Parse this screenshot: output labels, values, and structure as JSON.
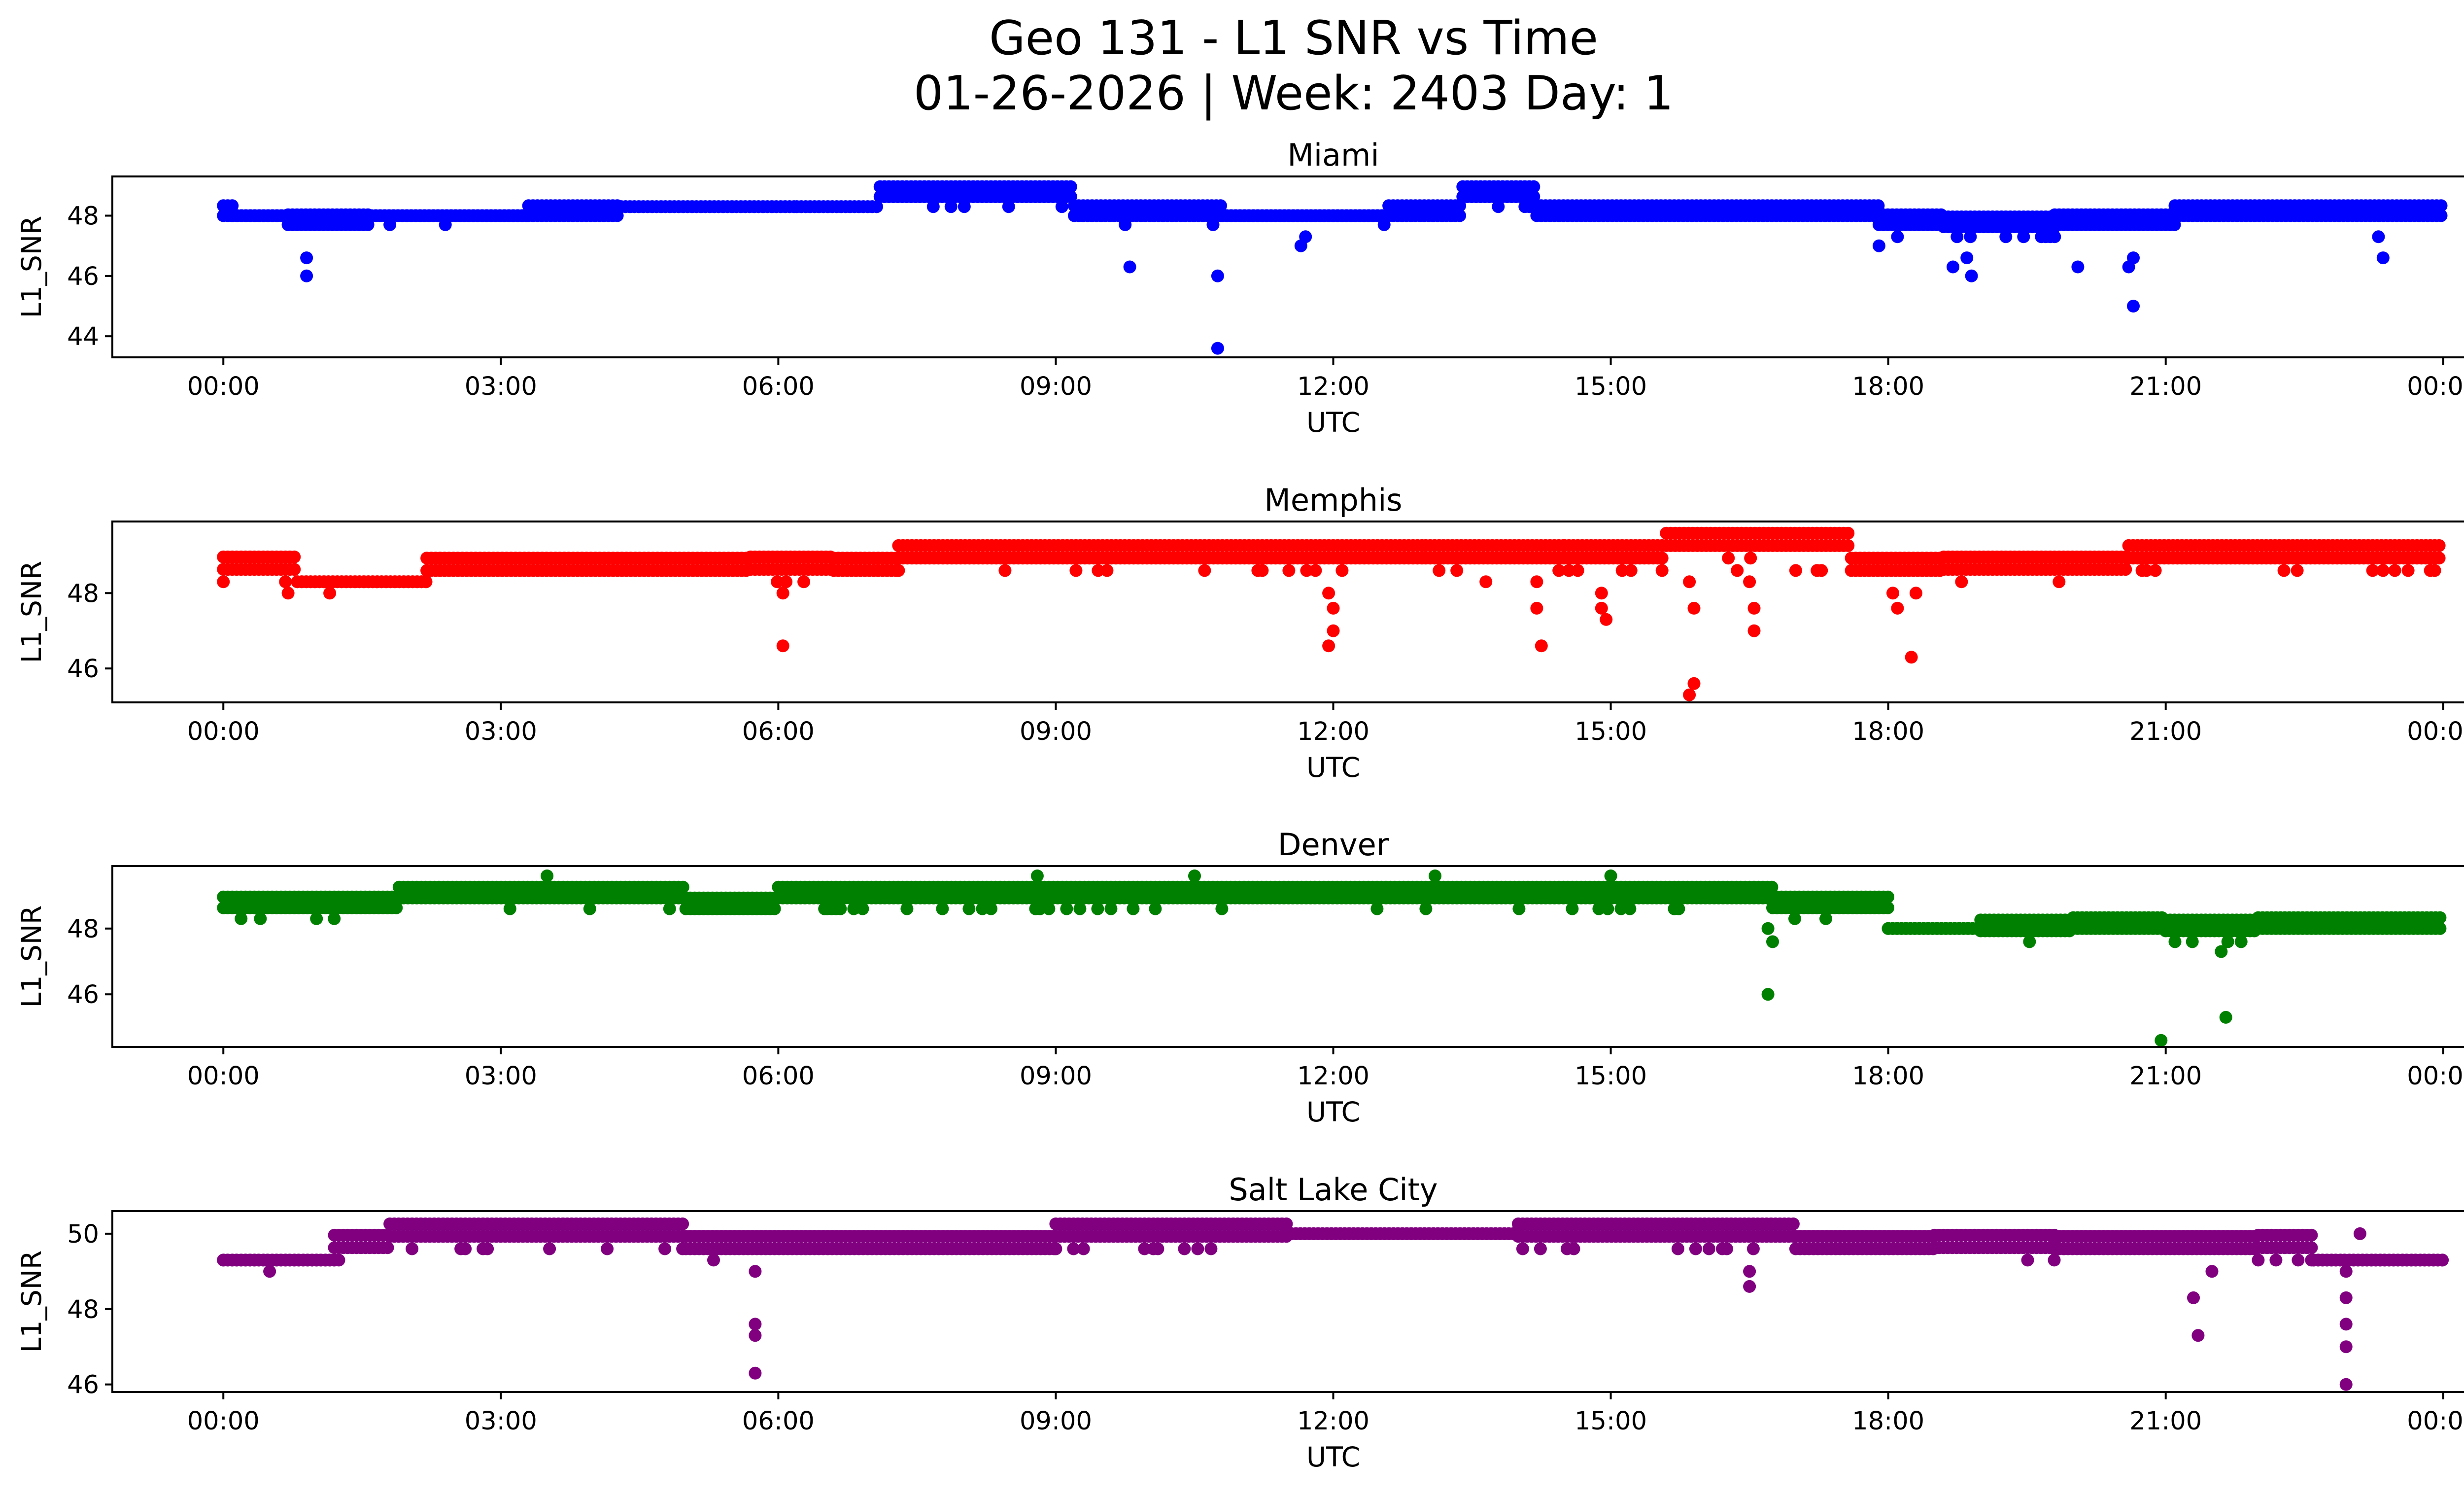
{
  "title": "Geo 131 - L1 SNR vs Time",
  "subtitle": "01-26-2026 | Week: 2403 Day: 1",
  "chart_data": [
    {
      "type": "scatter",
      "title": "Miami",
      "color": "#0000ff",
      "xlabel": "UTC",
      "ylabel": "L1_SNR",
      "xticks": [
        "00:00",
        "03:00",
        "06:00",
        "09:00",
        "12:00",
        "15:00",
        "18:00",
        "21:00",
        "00:00"
      ],
      "yticks": [
        44,
        46,
        48
      ],
      "xlim": [
        -1.2,
        25.2
      ],
      "ylim": [
        43.3,
        49.3
      ],
      "bands": [
        [
          0,
          0.1,
          48.0,
          48.6
        ],
        [
          0.1,
          0.7,
          48.0,
          48.3
        ],
        [
          0.7,
          1.6,
          47.7,
          48.3
        ],
        [
          1.6,
          3.3,
          48.0,
          48.3
        ],
        [
          3.3,
          4.3,
          48.0,
          48.6
        ],
        [
          4.3,
          6.2,
          48.3,
          48.6
        ],
        [
          6.2,
          7.1,
          48.3,
          48.6
        ],
        [
          7.1,
          9.2,
          48.3,
          49.0
        ],
        [
          9.2,
          10.8,
          48.0,
          48.6
        ],
        [
          10.8,
          12.6,
          48.0,
          48.3
        ],
        [
          12.6,
          13.4,
          48.0,
          48.6
        ],
        [
          13.4,
          14.2,
          48.3,
          49.0
        ],
        [
          14.2,
          17.9,
          48.0,
          48.6
        ],
        [
          17.9,
          18.6,
          47.7,
          48.3
        ],
        [
          18.6,
          19.8,
          47.3,
          48.0
        ],
        [
          19.8,
          21.1,
          47.7,
          48.3
        ],
        [
          21.1,
          24,
          48.0,
          48.6
        ]
      ],
      "outliers": [
        [
          0.9,
          46.6
        ],
        [
          0.9,
          46.0
        ],
        [
          1.8,
          47.7
        ],
        [
          2.4,
          47.7
        ],
        [
          9.75,
          47.7
        ],
        [
          9.8,
          46.3
        ],
        [
          10.75,
          46.0
        ],
        [
          10.75,
          43.6
        ],
        [
          10.7,
          47.7
        ],
        [
          11.65,
          47.0
        ],
        [
          11.7,
          47.3
        ],
        [
          12.55,
          47.7
        ],
        [
          17.9,
          47.0
        ],
        [
          18.1,
          47.3
        ],
        [
          18.7,
          46.3
        ],
        [
          18.9,
          46.0
        ],
        [
          18.85,
          46.6
        ],
        [
          20.05,
          46.3
        ],
        [
          20.65,
          45.0
        ],
        [
          20.65,
          46.6
        ],
        [
          20.6,
          46.3
        ],
        [
          23.35,
          46.6
        ],
        [
          23.3,
          47.3
        ]
      ]
    },
    {
      "type": "scatter",
      "title": "Memphis",
      "color": "#ff0000",
      "xlabel": "UTC",
      "ylabel": "L1_SNR",
      "xticks": [
        "00:00",
        "03:00",
        "06:00",
        "09:00",
        "12:00",
        "15:00",
        "18:00",
        "21:00",
        "00:00"
      ],
      "yticks": [
        46,
        48
      ],
      "xlim": [
        -1.2,
        25.2
      ],
      "ylim": [
        45.1,
        49.9
      ],
      "bands": [
        [
          0,
          0.8,
          48.3,
          49.0
        ],
        [
          0.8,
          2.2,
          48.3,
          48.6
        ],
        [
          2.2,
          5.7,
          48.6,
          49.0
        ],
        [
          5.7,
          6.6,
          48.3,
          49.0
        ],
        [
          6.6,
          7.3,
          48.6,
          49.0
        ],
        [
          7.3,
          13.0,
          48.6,
          49.3
        ],
        [
          13.0,
          14.5,
          48.6,
          49.3
        ],
        [
          14.5,
          15.6,
          48.6,
          49.3
        ],
        [
          15.6,
          17.6,
          48.6,
          49.6
        ],
        [
          17.6,
          18.6,
          48.6,
          49.0
        ],
        [
          18.6,
          20.6,
          48.3,
          49.0
        ],
        [
          20.6,
          24,
          48.6,
          49.3
        ]
      ],
      "outliers": [
        [
          0.7,
          48.0
        ],
        [
          1.15,
          48.0
        ],
        [
          6.05,
          48.0
        ],
        [
          6.05,
          46.6
        ],
        [
          11.95,
          48.0
        ],
        [
          12.0,
          47.6
        ],
        [
          12.0,
          47.0
        ],
        [
          11.95,
          46.6
        ],
        [
          13.65,
          48.3
        ],
        [
          14.2,
          48.3
        ],
        [
          14.2,
          47.6
        ],
        [
          14.25,
          46.6
        ],
        [
          14.9,
          48.0
        ],
        [
          14.9,
          47.6
        ],
        [
          14.95,
          47.3
        ],
        [
          15.85,
          48.3
        ],
        [
          15.9,
          47.6
        ],
        [
          15.9,
          45.6
        ],
        [
          15.85,
          45.3
        ],
        [
          16.5,
          48.3
        ],
        [
          16.55,
          47.6
        ],
        [
          16.55,
          47.0
        ],
        [
          17.0,
          48.6
        ],
        [
          18.05,
          48.0
        ],
        [
          18.1,
          47.6
        ],
        [
          18.25,
          46.3
        ],
        [
          18.3,
          48.0
        ],
        [
          23.35,
          48.6
        ]
      ]
    },
    {
      "type": "scatter",
      "title": "Denver",
      "color": "#008000",
      "xlabel": "UTC",
      "ylabel": "L1_SNR",
      "xticks": [
        "00:00",
        "03:00",
        "06:00",
        "09:00",
        "12:00",
        "15:00",
        "18:00",
        "21:00",
        "00:00"
      ],
      "yticks": [
        46,
        48
      ],
      "xlim": [
        -1.2,
        25.2
      ],
      "ylim": [
        44.4,
        49.9
      ],
      "bands": [
        [
          0,
          1.9,
          48.3,
          49.0
        ],
        [
          1.9,
          5.0,
          48.6,
          49.3
        ],
        [
          5.0,
          6.0,
          48.6,
          49.0
        ],
        [
          6.0,
          16.75,
          48.6,
          49.3
        ],
        [
          16.75,
          18.0,
          48.3,
          49.0
        ],
        [
          18.0,
          19.0,
          48.0,
          48.3
        ],
        [
          19.0,
          20.0,
          47.6,
          48.3
        ],
        [
          20.0,
          21.0,
          48.0,
          48.6
        ],
        [
          21.0,
          22.0,
          47.6,
          48.3
        ],
        [
          22.0,
          24,
          48.0,
          48.6
        ]
      ],
      "outliers": [
        [
          0.4,
          48.3
        ],
        [
          3.5,
          49.6
        ],
        [
          8.8,
          49.6
        ],
        [
          10.5,
          49.6
        ],
        [
          13.1,
          49.6
        ],
        [
          15.0,
          49.6
        ],
        [
          16.7,
          48.0
        ],
        [
          16.75,
          47.6
        ],
        [
          16.7,
          46.0
        ],
        [
          20.95,
          44.6
        ],
        [
          21.1,
          47.6
        ],
        [
          21.6,
          47.3
        ],
        [
          21.65,
          45.3
        ],
        [
          8.3,
          48.6
        ],
        [
          6.5,
          48.6
        ]
      ]
    },
    {
      "type": "scatter",
      "title": "Salt Lake City",
      "color": "#800080",
      "xlabel": "UTC",
      "ylabel": "L1_SNR",
      "xticks": [
        "00:00",
        "03:00",
        "06:00",
        "09:00",
        "12:00",
        "15:00",
        "18:00",
        "21:00",
        "00:00"
      ],
      "yticks": [
        46,
        48,
        50
      ],
      "xlim": [
        -1.2,
        25.2
      ],
      "ylim": [
        45.8,
        50.6
      ],
      "bands": [
        [
          0,
          1.2,
          49.3,
          49.6
        ],
        [
          1.2,
          1.8,
          49.3,
          50.0
        ],
        [
          1.8,
          5.0,
          49.6,
          50.3
        ],
        [
          5.0,
          9.0,
          49.6,
          50.0
        ],
        [
          9.0,
          11.5,
          49.6,
          50.3
        ],
        [
          11.5,
          14.0,
          50.0,
          50.3
        ],
        [
          14.0,
          17.0,
          49.6,
          50.3
        ],
        [
          17.0,
          18.5,
          49.6,
          50.0
        ],
        [
          18.5,
          19.8,
          49.3,
          50.0
        ],
        [
          19.8,
          22.0,
          49.6,
          50.0
        ],
        [
          22.0,
          22.6,
          49.3,
          50.0
        ],
        [
          22.6,
          24,
          49.3,
          49.6
        ]
      ],
      "outliers": [
        [
          0.5,
          49.0
        ],
        [
          5.75,
          49.0
        ],
        [
          5.75,
          47.6
        ],
        [
          5.75,
          47.3
        ],
        [
          5.75,
          46.3
        ],
        [
          5.3,
          49.3
        ],
        [
          9.3,
          49.6
        ],
        [
          14.6,
          49.6
        ],
        [
          16.5,
          49.0
        ],
        [
          16.5,
          48.6
        ],
        [
          21.3,
          48.3
        ],
        [
          21.35,
          47.3
        ],
        [
          21.5,
          49.0
        ],
        [
          22.0,
          49.3
        ],
        [
          22.95,
          49.0
        ],
        [
          22.95,
          48.3
        ],
        [
          22.95,
          47.6
        ],
        [
          22.95,
          47.0
        ],
        [
          22.95,
          46.0
        ],
        [
          23.1,
          50.0
        ]
      ]
    }
  ]
}
